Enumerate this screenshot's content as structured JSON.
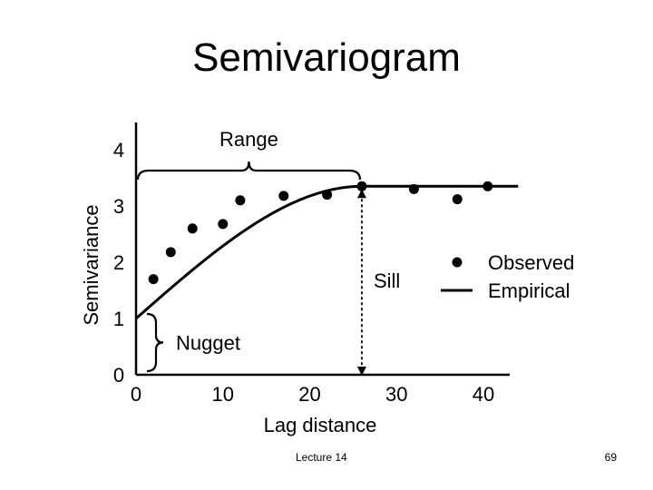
{
  "slide": {
    "title": "Semivariogram",
    "footer": "Lecture 14",
    "page_number": "69"
  },
  "chart_data": {
    "type": "scatter",
    "title": "",
    "xlabel": "Lag distance",
    "ylabel": "Semivariance",
    "xlim": [
      0,
      45
    ],
    "ylim": [
      0,
      4.5
    ],
    "xticks": [
      0,
      10,
      20,
      30,
      40
    ],
    "yticks": [
      0,
      1,
      2,
      3,
      4
    ],
    "grid": false,
    "legend_position": "right",
    "colors": {
      "ink": "#000000"
    },
    "series": [
      {
        "name": "Observed",
        "kind": "points",
        "x": [
          2,
          4,
          6.5,
          10,
          12,
          17,
          22,
          26,
          32,
          37,
          40.5
        ],
        "y": [
          1.7,
          2.18,
          2.6,
          2.68,
          3.1,
          3.18,
          3.2,
          3.35,
          3.3,
          3.12,
          3.35
        ]
      },
      {
        "name": "Empirical",
        "kind": "curve",
        "model": "spherical",
        "nugget": 1.0,
        "sill": 3.35,
        "range": 26,
        "x_end": 44
      }
    ],
    "annotations": {
      "range_label": "Range",
      "sill_label": "Sill",
      "nugget_label": "Nugget"
    }
  }
}
